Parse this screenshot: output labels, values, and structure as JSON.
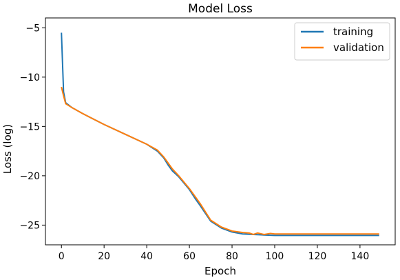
{
  "chart_data": {
    "type": "line",
    "title": "Model Loss",
    "xlabel": "Epoch",
    "ylabel": "Loss (log)",
    "xlim": [
      -7.5,
      156.5
    ],
    "ylim": [
      -27,
      -4
    ],
    "xticks": [
      0,
      20,
      40,
      60,
      80,
      100,
      120,
      140
    ],
    "yticks": [
      -5,
      -10,
      -15,
      -20,
      -25
    ],
    "xtick_labels": [
      "0",
      "20",
      "40",
      "60",
      "80",
      "100",
      "120",
      "140"
    ],
    "ytick_labels": [
      "−5",
      "−10",
      "−15",
      "−20",
      "−25"
    ],
    "grid": false,
    "legend_position": "top-right",
    "series": [
      {
        "name": "training",
        "color": "#1f77b4",
        "x": [
          0,
          1,
          2,
          5,
          10,
          20,
          30,
          40,
          45,
          48,
          50,
          52,
          55,
          60,
          63,
          65,
          70,
          75,
          80,
          85,
          90,
          95,
          100,
          110,
          120,
          130,
          140,
          149
        ],
        "y": [
          -5.5,
          -11.5,
          -12.6,
          -13.1,
          -13.7,
          -14.8,
          -15.8,
          -16.8,
          -17.5,
          -18.2,
          -18.9,
          -19.5,
          -20.1,
          -21.4,
          -22.4,
          -23.0,
          -24.6,
          -25.3,
          -25.7,
          -25.9,
          -25.95,
          -26.0,
          -26.05,
          -26.05,
          -26.05,
          -26.05,
          -26.05,
          -26.05
        ]
      },
      {
        "name": "validation",
        "color": "#ff7f0e",
        "x": [
          0,
          1,
          2,
          5,
          10,
          20,
          30,
          40,
          45,
          48,
          50,
          52,
          55,
          60,
          63,
          65,
          70,
          75,
          80,
          85,
          88,
          90,
          92,
          95,
          98,
          100,
          110,
          120,
          130,
          140,
          149
        ],
        "y": [
          -11.0,
          -11.9,
          -12.7,
          -13.1,
          -13.7,
          -14.8,
          -15.8,
          -16.8,
          -17.4,
          -18.1,
          -18.7,
          -19.3,
          -20.0,
          -21.3,
          -22.2,
          -22.8,
          -24.5,
          -25.2,
          -25.6,
          -25.75,
          -25.8,
          -25.95,
          -25.8,
          -25.95,
          -25.85,
          -25.9,
          -25.9,
          -25.9,
          -25.9,
          -25.9,
          -25.9
        ]
      }
    ]
  }
}
